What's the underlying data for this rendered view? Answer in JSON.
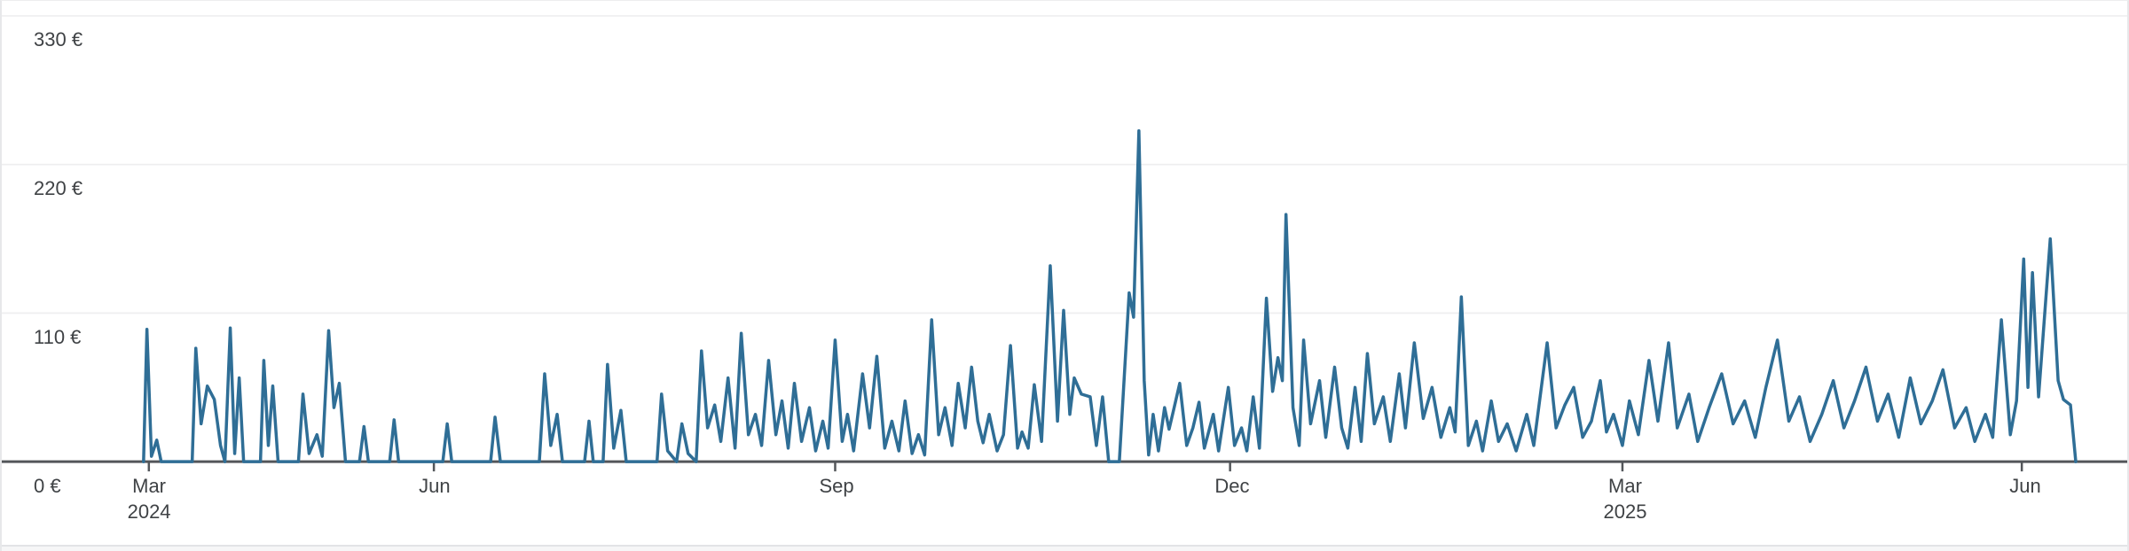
{
  "colors": {
    "line": "#2f6e96",
    "axis": "#53565a",
    "grid": "#eeeeef",
    "label": "#3f4245",
    "background": "#ffffff",
    "card_edge": "#e7e8ea",
    "bottom_strip": "#f6f6f7"
  },
  "chart_data": {
    "type": "line",
    "title": "",
    "currency_unit": "€",
    "grid": true,
    "legend": false,
    "y_axis": {
      "min": 0,
      "max": 330,
      "ticks": [
        {
          "value": 0,
          "label": "0 €"
        },
        {
          "value": 110,
          "label": "110 €"
        },
        {
          "value": 220,
          "label": "220 €"
        },
        {
          "value": 330,
          "label": "330 €"
        }
      ]
    },
    "x_axis": {
      "ticks": [
        {
          "label": "Mar",
          "year_label": "2024",
          "pos": 0.0692
        },
        {
          "label": "Jun",
          "year_label": "",
          "pos": 0.2033
        },
        {
          "label": "Sep",
          "year_label": "",
          "pos": 0.3921
        },
        {
          "label": "Dec",
          "year_label": "",
          "pos": 0.5779
        },
        {
          "label": "Mar",
          "year_label": "2025",
          "pos": 0.7625
        },
        {
          "label": "Jun",
          "year_label": "",
          "pos": 0.9504
        }
      ]
    },
    "series": [
      {
        "name": "amount-eur",
        "color": "#2f6e96",
        "points": [
          [
            0.0667,
            0
          ],
          [
            0.0683,
            98
          ],
          [
            0.0704,
            4
          ],
          [
            0.0729,
            16
          ],
          [
            0.075,
            0
          ],
          [
            0.0896,
            0
          ],
          [
            0.0913,
            84
          ],
          [
            0.0938,
            28
          ],
          [
            0.0967,
            56
          ],
          [
            0.1,
            46
          ],
          [
            0.1029,
            12
          ],
          [
            0.105,
            0
          ],
          [
            0.1075,
            99
          ],
          [
            0.1096,
            6
          ],
          [
            0.1117,
            62
          ],
          [
            0.1138,
            0
          ],
          [
            0.1217,
            0
          ],
          [
            0.1233,
            75
          ],
          [
            0.1254,
            12
          ],
          [
            0.1275,
            56
          ],
          [
            0.13,
            0
          ],
          [
            0.1396,
            0
          ],
          [
            0.1417,
            50
          ],
          [
            0.1446,
            6
          ],
          [
            0.1483,
            20
          ],
          [
            0.1508,
            4
          ],
          [
            0.1538,
            97
          ],
          [
            0.1563,
            40
          ],
          [
            0.1588,
            58
          ],
          [
            0.1617,
            0
          ],
          [
            0.1683,
            0
          ],
          [
            0.1704,
            26
          ],
          [
            0.1725,
            0
          ],
          [
            0.1825,
            0
          ],
          [
            0.1846,
            31
          ],
          [
            0.1867,
            0
          ],
          [
            0.2075,
            0
          ],
          [
            0.2096,
            28
          ],
          [
            0.2117,
            0
          ],
          [
            0.23,
            0
          ],
          [
            0.2321,
            33
          ],
          [
            0.2346,
            0
          ],
          [
            0.2529,
            0
          ],
          [
            0.2554,
            65
          ],
          [
            0.2583,
            12
          ],
          [
            0.2613,
            35
          ],
          [
            0.2638,
            0
          ],
          [
            0.2742,
            0
          ],
          [
            0.2763,
            30
          ],
          [
            0.2783,
            0
          ],
          [
            0.2829,
            0
          ],
          [
            0.285,
            72
          ],
          [
            0.2879,
            10
          ],
          [
            0.2913,
            38
          ],
          [
            0.2938,
            0
          ],
          [
            0.3083,
            0
          ],
          [
            0.3104,
            50
          ],
          [
            0.3133,
            8
          ],
          [
            0.3175,
            0
          ],
          [
            0.32,
            28
          ],
          [
            0.3229,
            6
          ],
          [
            0.3267,
            0
          ],
          [
            0.3292,
            82
          ],
          [
            0.3321,
            25
          ],
          [
            0.3354,
            42
          ],
          [
            0.3383,
            15
          ],
          [
            0.3417,
            62
          ],
          [
            0.345,
            10
          ],
          [
            0.3479,
            95
          ],
          [
            0.3513,
            20
          ],
          [
            0.3546,
            35
          ],
          [
            0.3575,
            12
          ],
          [
            0.3608,
            75
          ],
          [
            0.3642,
            20
          ],
          [
            0.3671,
            45
          ],
          [
            0.37,
            10
          ],
          [
            0.3729,
            58
          ],
          [
            0.3763,
            15
          ],
          [
            0.38,
            40
          ],
          [
            0.3829,
            8
          ],
          [
            0.3863,
            30
          ],
          [
            0.3888,
            10
          ],
          [
            0.3921,
            90
          ],
          [
            0.3954,
            15
          ],
          [
            0.3979,
            35
          ],
          [
            0.4008,
            8
          ],
          [
            0.405,
            65
          ],
          [
            0.4083,
            25
          ],
          [
            0.4117,
            78
          ],
          [
            0.4154,
            10
          ],
          [
            0.4188,
            30
          ],
          [
            0.4221,
            8
          ],
          [
            0.425,
            45
          ],
          [
            0.4283,
            6
          ],
          [
            0.4313,
            20
          ],
          [
            0.4342,
            5
          ],
          [
            0.4375,
            105
          ],
          [
            0.4408,
            20
          ],
          [
            0.4438,
            40
          ],
          [
            0.4471,
            12
          ],
          [
            0.45,
            58
          ],
          [
            0.4533,
            25
          ],
          [
            0.4563,
            70
          ],
          [
            0.4592,
            30
          ],
          [
            0.4617,
            14
          ],
          [
            0.4646,
            35
          ],
          [
            0.4683,
            8
          ],
          [
            0.4713,
            20
          ],
          [
            0.4746,
            86
          ],
          [
            0.4779,
            10
          ],
          [
            0.48,
            22
          ],
          [
            0.4829,
            10
          ],
          [
            0.4858,
            57
          ],
          [
            0.4892,
            15
          ],
          [
            0.4933,
            145
          ],
          [
            0.4967,
            30
          ],
          [
            0.4996,
            112
          ],
          [
            0.5025,
            35
          ],
          [
            0.5046,
            62
          ],
          [
            0.5079,
            50
          ],
          [
            0.5121,
            48
          ],
          [
            0.515,
            12
          ],
          [
            0.5179,
            48
          ],
          [
            0.5208,
            0
          ],
          [
            0.5258,
            0
          ],
          [
            0.5304,
            125
          ],
          [
            0.5325,
            107
          ],
          [
            0.535,
            245
          ],
          [
            0.5375,
            60
          ],
          [
            0.5396,
            5
          ],
          [
            0.5417,
            35
          ],
          [
            0.5442,
            8
          ],
          [
            0.5471,
            40
          ],
          [
            0.5492,
            24
          ],
          [
            0.5513,
            38
          ],
          [
            0.5542,
            58
          ],
          [
            0.5575,
            12
          ],
          [
            0.5604,
            25
          ],
          [
            0.5633,
            44
          ],
          [
            0.5658,
            10
          ],
          [
            0.57,
            35
          ],
          [
            0.5725,
            8
          ],
          [
            0.5771,
            55
          ],
          [
            0.58,
            12
          ],
          [
            0.5833,
            25
          ],
          [
            0.5858,
            8
          ],
          [
            0.5888,
            48
          ],
          [
            0.5917,
            10
          ],
          [
            0.595,
            121
          ],
          [
            0.5979,
            52
          ],
          [
            0.6004,
            77
          ],
          [
            0.6025,
            60
          ],
          [
            0.6042,
            183
          ],
          [
            0.6075,
            40
          ],
          [
            0.6104,
            12
          ],
          [
            0.6125,
            90
          ],
          [
            0.6158,
            28
          ],
          [
            0.62,
            60
          ],
          [
            0.6229,
            18
          ],
          [
            0.6271,
            70
          ],
          [
            0.6304,
            25
          ],
          [
            0.6333,
            10
          ],
          [
            0.6367,
            55
          ],
          [
            0.6396,
            15
          ],
          [
            0.6425,
            80
          ],
          [
            0.6458,
            28
          ],
          [
            0.65,
            48
          ],
          [
            0.6533,
            15
          ],
          [
            0.6575,
            65
          ],
          [
            0.6604,
            25
          ],
          [
            0.6646,
            88
          ],
          [
            0.6688,
            32
          ],
          [
            0.6729,
            55
          ],
          [
            0.6771,
            18
          ],
          [
            0.6813,
            40
          ],
          [
            0.6838,
            22
          ],
          [
            0.6867,
            122
          ],
          [
            0.69,
            12
          ],
          [
            0.6938,
            30
          ],
          [
            0.6967,
            8
          ],
          [
            0.7008,
            45
          ],
          [
            0.7042,
            15
          ],
          [
            0.7083,
            28
          ],
          [
            0.7125,
            8
          ],
          [
            0.7175,
            35
          ],
          [
            0.7208,
            12
          ],
          [
            0.7271,
            88
          ],
          [
            0.7313,
            25
          ],
          [
            0.7354,
            42
          ],
          [
            0.7396,
            55
          ],
          [
            0.7438,
            18
          ],
          [
            0.7479,
            30
          ],
          [
            0.7521,
            60
          ],
          [
            0.755,
            22
          ],
          [
            0.7583,
            35
          ],
          [
            0.7625,
            12
          ],
          [
            0.7658,
            45
          ],
          [
            0.77,
            20
          ],
          [
            0.775,
            75
          ],
          [
            0.7792,
            30
          ],
          [
            0.7842,
            88
          ],
          [
            0.7883,
            25
          ],
          [
            0.7938,
            50
          ],
          [
            0.7979,
            15
          ],
          [
            0.8033,
            40
          ],
          [
            0.8092,
            65
          ],
          [
            0.8146,
            28
          ],
          [
            0.82,
            45
          ],
          [
            0.825,
            18
          ],
          [
            0.83,
            55
          ],
          [
            0.8354,
            90
          ],
          [
            0.8408,
            30
          ],
          [
            0.8458,
            48
          ],
          [
            0.8508,
            15
          ],
          [
            0.8563,
            35
          ],
          [
            0.8617,
            60
          ],
          [
            0.8667,
            25
          ],
          [
            0.8717,
            45
          ],
          [
            0.8771,
            70
          ],
          [
            0.8825,
            30
          ],
          [
            0.8875,
            50
          ],
          [
            0.8925,
            18
          ],
          [
            0.8979,
            62
          ],
          [
            0.9029,
            28
          ],
          [
            0.9083,
            45
          ],
          [
            0.9133,
            68
          ],
          [
            0.9188,
            25
          ],
          [
            0.9242,
            40
          ],
          [
            0.9283,
            15
          ],
          [
            0.9333,
            35
          ],
          [
            0.9367,
            18
          ],
          [
            0.9408,
            105
          ],
          [
            0.945,
            20
          ],
          [
            0.9479,
            45
          ],
          [
            0.9513,
            150
          ],
          [
            0.9533,
            55
          ],
          [
            0.9554,
            140
          ],
          [
            0.9583,
            48
          ],
          [
            0.9638,
            165
          ],
          [
            0.9675,
            60
          ],
          [
            0.97,
            46
          ],
          [
            0.9733,
            42
          ],
          [
            0.9758,
            0
          ]
        ]
      }
    ]
  }
}
